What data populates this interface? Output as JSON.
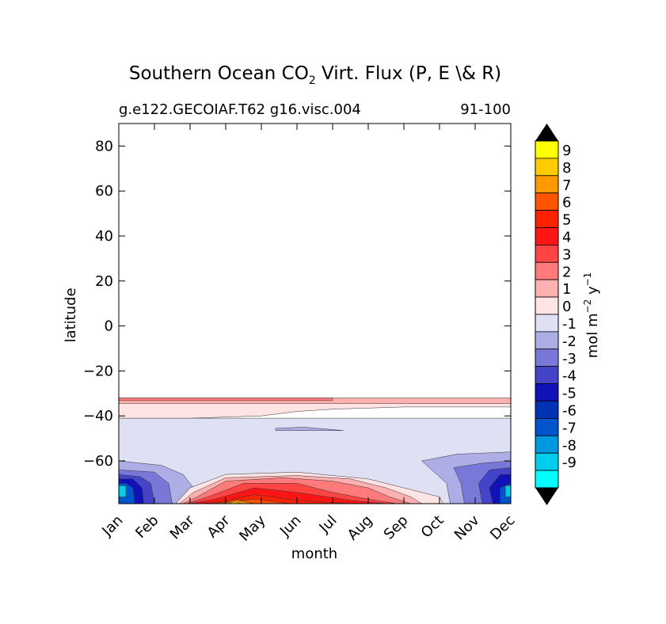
{
  "chart_data": {
    "type": "heatmap",
    "title_main": "Southern Ocean CO",
    "title_sub": "2",
    "title_rest": " Virt. Flux (P, E \\& R)",
    "subtitle_left": "g.e122.GECOIAF.T62 g16.visc.004",
    "subtitle_right": "91-100",
    "xlabel": "month",
    "ylabel": "latitude",
    "x_categories": [
      "Jan",
      "Feb",
      "Mar",
      "Apr",
      "May",
      "Jun",
      "Jul",
      "Aug",
      "Sep",
      "Oct",
      "Nov",
      "Dec"
    ],
    "xlim": [
      0,
      11
    ],
    "ylim": [
      -79,
      90
    ],
    "y_ticks": [
      {
        "value": 80,
        "label": "80"
      },
      {
        "value": 60,
        "label": "60"
      },
      {
        "value": 40,
        "label": "40"
      },
      {
        "value": 20,
        "label": "20"
      },
      {
        "value": 0,
        "label": "0"
      },
      {
        "value": -20,
        "label": "−20"
      },
      {
        "value": -40,
        "label": "−40"
      },
      {
        "value": -60,
        "label": "−60"
      }
    ],
    "colorbar": {
      "label_main": "mol m",
      "label_exp1": "−2",
      "label_mid": " y",
      "label_exp2": "−1",
      "levels": [
        {
          "label": "9",
          "color": "#ffff00"
        },
        {
          "label": "8",
          "color": "#ffcc00"
        },
        {
          "label": "7",
          "color": "#ff9900"
        },
        {
          "label": "6",
          "color": "#ff5500"
        },
        {
          "label": "5",
          "color": "#ff2200"
        },
        {
          "label": "4",
          "color": "#ff1515"
        },
        {
          "label": "3",
          "color": "#ff4444"
        },
        {
          "label": "2",
          "color": "#ff7a7a"
        },
        {
          "label": "1",
          "color": "#ffb0b0"
        },
        {
          "label": "0",
          "color": "#ffe4e4"
        },
        {
          "label": "-1",
          "color": "#e0e0f4"
        },
        {
          "label": "-2",
          "color": "#aeaee6"
        },
        {
          "label": "-3",
          "color": "#7878d8"
        },
        {
          "label": "-4",
          "color": "#4444c8"
        },
        {
          "label": "-5",
          "color": "#1111b8"
        },
        {
          "label": "-6",
          "color": "#0033b4"
        },
        {
          "label": "-7",
          "color": "#0055cc"
        },
        {
          "label": "-8",
          "color": "#0099e0"
        },
        {
          "label": "-9",
          "color": "#00ccee"
        }
      ],
      "bottom_color": "#00ffff",
      "over_color": "#000000",
      "under_color": "#000000"
    },
    "regions": [
      {
        "name": "subantarctic-band-0-to-1",
        "lat_range": [
          -41,
          -34
        ],
        "level": "0"
      },
      {
        "name": "northern-edge-band-1-to-2",
        "lat_range": [
          -34,
          -32
        ],
        "level": "1"
      },
      {
        "name": "southern-ocean-band-minus1-to-0",
        "lat_range": [
          -79,
          -41
        ],
        "level": "-1"
      },
      {
        "name": "antarctic-summer-uptake-jan",
        "months": [
          "Dec",
          "Jan",
          "Feb"
        ],
        "min_level": "-9"
      },
      {
        "name": "antarctic-winter-outgassing",
        "months": [
          "Mar",
          "Apr",
          "May",
          "Jun",
          "Jul",
          "Aug",
          "Sep",
          "Oct"
        ],
        "max_level": "8"
      }
    ]
  }
}
